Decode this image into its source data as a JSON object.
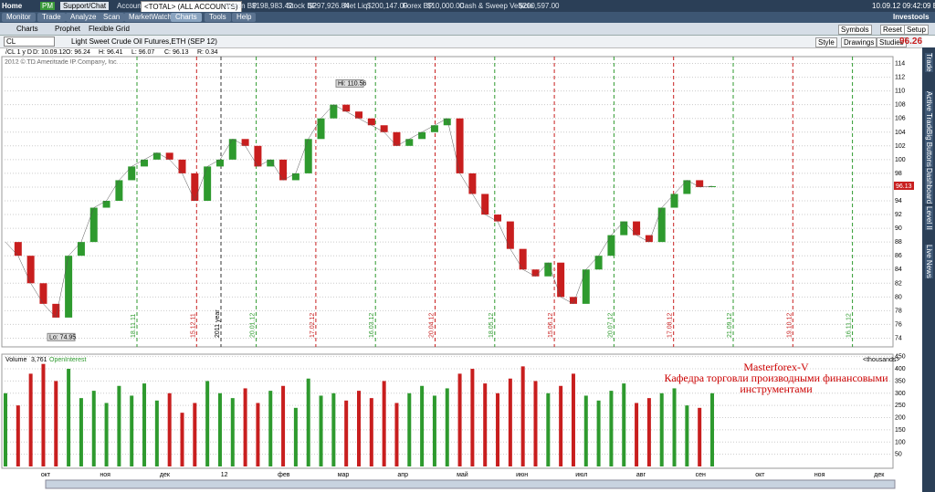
{
  "ui": {
    "home": "Home",
    "pm": "PM",
    "support": "Support/Chat",
    "account_label": "Account",
    "account": "<TOTAL> (ALL ACCOUNTS)",
    "option_bp": "Option BP",
    "option_bp_val": "$198,983.42",
    "stock_bp": "Stock BP",
    "stock_bp_val": "$297,926.84",
    "net_liq": "Net Liq",
    "net_liq_val": "$200,147.00",
    "forex_bp": "Forex BP",
    "forex_bp_val": "$10,000.00",
    "cash": "Cash & Sweep Vehicle",
    "cash_val": "$200,597.00",
    "datetime": "10.09.12 09:42:09 EET",
    "brand": "Investools",
    "tabs": [
      "Monitor",
      "Trade",
      "Analyze",
      "Scan",
      "MarketWatch",
      "Charts",
      "Tools",
      "Help"
    ],
    "subtabs": [
      "Charts",
      "Prophet",
      "Flexible Grid"
    ],
    "symbol": "CL",
    "symbol_desc": "Light Sweet Crude Oil Futures,ETH (SEP 12)",
    "quote": [
      "D: 10.09.12",
      "O: 96.24",
      "H: 96.41",
      "L: 96.07",
      "C: 96.13",
      "R: 0.34"
    ],
    "period": "/CL 1 y D",
    "copyright": "2012 © TD Ameritrade IP Company, Inc.",
    "buttons": [
      "Symbols",
      "Reset",
      "Setup",
      "Style",
      "Drawings",
      "Studies"
    ],
    "last": "96.26",
    "side": [
      "Trade",
      "Active Trader",
      "Big Buttons",
      "Dashboard",
      "Level II",
      "Live News"
    ],
    "volume_label": "Volume",
    "volume_val": "3,761",
    "oi_label": "OpenInterest",
    "thousands": "<thousands>",
    "watermark": [
      "Masterforex-V",
      "Кафедра торговли производными финансовыми",
      "инструментами"
    ],
    "date_markers": [
      "18.11.11",
      "15.12.11",
      "20.01.12",
      "17.02.12",
      "16.03.12",
      "20.04.12",
      "18.05.12",
      "15.06.12",
      "20.07.12",
      "17.08.12",
      "21.09.12",
      "19.10.12",
      "16.11.12"
    ],
    "year_marker": "2011 year"
  },
  "chart_data": [
    {
      "type": "line",
      "values": [
        88,
        86,
        82,
        79,
        77,
        86,
        88,
        93,
        94,
        97,
        99,
        100,
        101,
        100,
        98,
        94,
        99,
        100,
        103,
        102,
        99,
        100,
        97,
        98,
        103,
        106,
        108,
        107,
        106,
        105,
        104,
        102,
        103,
        104,
        105,
        106,
        98,
        95,
        92,
        91,
        87,
        84,
        83,
        85,
        80,
        79,
        84,
        86,
        89,
        91,
        89,
        88,
        93,
        95,
        97,
        96,
        96.13
      ],
      "color_up": "#2e9a2e",
      "color_down": "#c81e1e",
      "ylim": [
        73,
        115
      ],
      "yticks": [
        74,
        76,
        78,
        80,
        82,
        84,
        86,
        88,
        90,
        92,
        94,
        96,
        98,
        100,
        102,
        104,
        106,
        108,
        110,
        112,
        114
      ],
      "annotations": [
        {
          "label": "Hi: 110.56",
          "value": 110.56
        },
        {
          "label": "Lo: 74.95",
          "value": 74.95
        }
      ],
      "last_label": "96.13",
      "last_value": 96.13,
      "grid": true
    },
    {
      "type": "bar",
      "values": [
        300,
        250,
        380,
        420,
        350,
        400,
        280,
        310,
        260,
        330,
        290,
        340,
        270,
        300,
        220,
        260,
        350,
        300,
        280,
        320,
        260,
        310,
        330,
        240,
        360,
        290,
        300,
        270,
        310,
        280,
        350,
        260,
        300,
        330,
        290,
        320,
        380,
        400,
        340,
        300,
        360,
        410,
        350,
        300,
        330,
        380,
        290,
        270,
        310,
        340,
        260,
        280,
        300,
        320,
        250,
        240,
        300
      ],
      "ylim": [
        0,
        460
      ],
      "yticks": [
        50,
        100,
        150,
        200,
        250,
        300,
        350,
        400,
        450
      ],
      "x_labels": [
        "окт",
        "ноя",
        "дек",
        "12",
        "фев",
        "мар",
        "апр",
        "май",
        "июн",
        "июл",
        "авг",
        "сен",
        "окт",
        "ноя",
        "дек"
      ],
      "grid": true
    }
  ]
}
